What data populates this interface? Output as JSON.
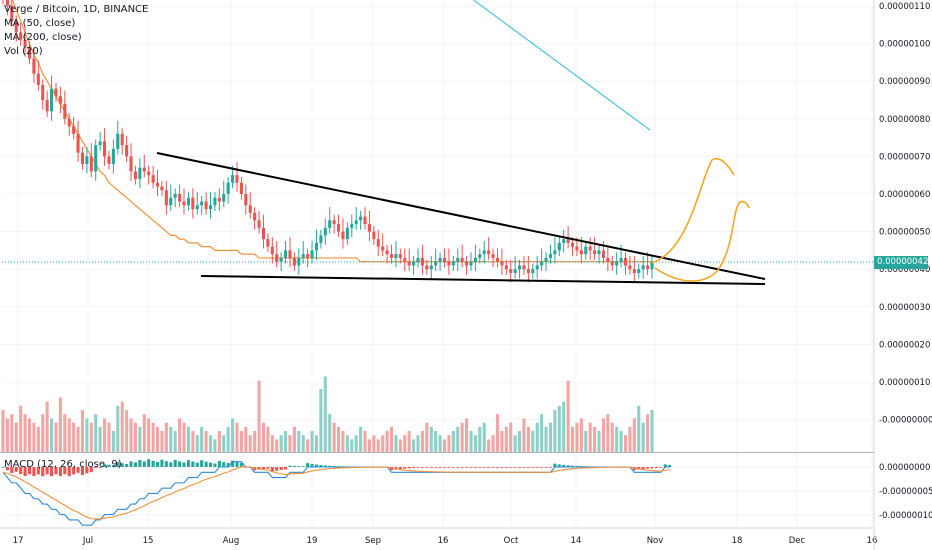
{
  "legend": {
    "symbol": "Verge / Bitcoin, 1D, BINANCE",
    "ma50": "MA (50, close)",
    "ma200": "MA (200, close)",
    "vol": "Vol (20)",
    "macd": "MACD (12, 26, close, 9)"
  },
  "colors": {
    "up": "#26a69a",
    "down": "#ef5350",
    "up_vol": "#8fcfc8",
    "down_vol": "#f3a5a4",
    "ma50": "#f0913c",
    "ma200": "#4dc3d6",
    "macd": "#2d8ad6",
    "signal": "#f0913c",
    "drawing": "#f5a623"
  },
  "last_price": "0.00000042",
  "chart_data": {
    "type": "candlestick",
    "title": "Verge / Bitcoin, 1D, BINANCE",
    "price_ticks": [
      "0.00000110",
      "0.00000100",
      "0.00000090",
      "0.00000080",
      "0.00000070",
      "0.00000060",
      "0.00000050",
      "0.00000040",
      "0.00000030",
      "0.00000020",
      "0.00000010",
      "-0.00000000"
    ],
    "macd_ticks": [
      "0.00000000",
      "-0.00000005",
      "-0.00000010"
    ],
    "x_ticks": [
      "17",
      "Jul",
      "15",
      "Aug",
      "19",
      "Sep",
      "16",
      "Oct",
      "14",
      "Nov",
      "18",
      "Dec",
      "16"
    ],
    "close": [
      112,
      110,
      106,
      103,
      101,
      99,
      96,
      92,
      89,
      85,
      82,
      88,
      86,
      84,
      80,
      78,
      76,
      71,
      68,
      70,
      66,
      73,
      74,
      70,
      68,
      72,
      76,
      73,
      70,
      66,
      64,
      67,
      66,
      65,
      63,
      62,
      61,
      57,
      59,
      60,
      58,
      57,
      59,
      56,
      57,
      58,
      56,
      57,
      59,
      58,
      60,
      63,
      65,
      63,
      60,
      57,
      55,
      53,
      51,
      48,
      46,
      44,
      42,
      43,
      45,
      43,
      41,
      43,
      44,
      43,
      45,
      47,
      49,
      51,
      53,
      52,
      50,
      48,
      51,
      52,
      53,
      54,
      52,
      50,
      48,
      46,
      45,
      44,
      43,
      44,
      43,
      42,
      41,
      42,
      43,
      41,
      40,
      41,
      42,
      43,
      42,
      41,
      42,
      43,
      42,
      41,
      42,
      43,
      44,
      45,
      44,
      43,
      42,
      41,
      40,
      39,
      40,
      41,
      40,
      39,
      40,
      41,
      42,
      43,
      44,
      45,
      47,
      48,
      47,
      46,
      45,
      44,
      46,
      45,
      44,
      45,
      43,
      42,
      41,
      42,
      43,
      41,
      40,
      39,
      40,
      41,
      40,
      42
    ],
    "volume": [
      10,
      8,
      9,
      7,
      11,
      9,
      8,
      7,
      6,
      9,
      12,
      8,
      7,
      13,
      9,
      8,
      7,
      6,
      10,
      8,
      7,
      9,
      6,
      8,
      7,
      5,
      11,
      12,
      10,
      8,
      7,
      6,
      9,
      8,
      7,
      6,
      5,
      7,
      6,
      5,
      8,
      7,
      6,
      5,
      4,
      6,
      5,
      4,
      3,
      5,
      4,
      6,
      8,
      7,
      5,
      6,
      4,
      5,
      17,
      7,
      6,
      4,
      3,
      4,
      5,
      4,
      6,
      5,
      4,
      3,
      5,
      4,
      15,
      18,
      9,
      7,
      6,
      5,
      4,
      3,
      4,
      6,
      5,
      3,
      4,
      3,
      4,
      5,
      6,
      4,
      3,
      4,
      5,
      3,
      4,
      5,
      7,
      6,
      5,
      4,
      3,
      4,
      5,
      6,
      7,
      8,
      5,
      4,
      6,
      7,
      3,
      4,
      9,
      5,
      6,
      7,
      4,
      5,
      8,
      6,
      5,
      7,
      9,
      6,
      7,
      10,
      11,
      12,
      17,
      6,
      7,
      8,
      5,
      7,
      6,
      5,
      8,
      9,
      7,
      6,
      5,
      4,
      6,
      8,
      11,
      7,
      9,
      10
    ],
    "ma50": [
      118,
      115,
      112,
      109,
      106,
      103,
      100,
      97,
      95,
      92,
      90,
      88,
      86,
      84,
      82,
      80,
      78,
      76,
      74,
      72,
      70,
      68,
      66,
      65,
      63,
      62,
      61,
      60,
      59,
      58,
      57,
      56,
      55,
      54,
      53,
      52,
      51,
      50,
      49,
      49,
      48,
      48,
      47,
      47,
      47,
      46,
      46,
      46,
      45,
      45,
      45,
      45,
      45,
      45,
      44,
      44,
      44,
      44,
      43,
      43,
      43,
      43,
      43,
      43,
      43,
      43,
      43,
      43,
      43,
      43,
      43,
      43,
      43,
      43,
      43,
      43,
      43,
      43,
      43,
      43,
      43,
      42,
      42,
      42,
      42,
      42,
      42,
      42,
      42,
      42,
      42,
      42,
      42,
      42,
      42,
      42,
      42,
      42,
      42,
      42,
      42,
      42,
      42,
      42,
      42,
      42,
      42,
      42,
      42,
      42,
      42,
      42,
      42,
      42,
      42,
      42,
      42,
      42,
      42,
      42,
      42,
      42,
      42,
      42,
      42,
      42,
      42,
      42,
      42,
      42,
      42,
      42,
      42,
      42,
      42,
      42,
      42,
      42,
      42,
      42,
      42,
      42,
      42,
      42,
      42,
      42,
      42,
      42
    ],
    "ma200_start": 119,
    "ma200_end": 77,
    "macd_line": [
      -1,
      -2,
      -3,
      -3,
      -4,
      -5,
      -5,
      -6,
      -6,
      -7,
      -7,
      -8,
      -8,
      -9,
      -9,
      -10,
      -10,
      -10,
      -11,
      -11,
      -11,
      -10,
      -10,
      -9,
      -9,
      -9,
      -8,
      -8,
      -8,
      -7,
      -7,
      -6,
      -6,
      -5,
      -5,
      -5,
      -4,
      -4,
      -4,
      -3,
      -3,
      -3,
      -2,
      -2,
      -2,
      -1,
      -1,
      -1,
      -1,
      0,
      0,
      0,
      1,
      1,
      1,
      0,
      0,
      -1,
      -1,
      -1,
      -1,
      -2,
      -2,
      -2,
      -2,
      -1,
      -1,
      -1,
      -1,
      0,
      0,
      0,
      0,
      0,
      0,
      0,
      0,
      0,
      0,
      0,
      0,
      0,
      0,
      0,
      0,
      0,
      0,
      0,
      -1,
      -1,
      -1,
      -1,
      -1,
      -1,
      -1,
      -1,
      -1,
      -1,
      -1,
      -1,
      -1,
      -1,
      -1,
      -1,
      -1,
      -1,
      -1,
      -1,
      -1,
      -1,
      -1,
      -1,
      -1,
      -1,
      -1,
      -1,
      -1,
      -1,
      -1,
      -1,
      -1,
      -1,
      -1,
      -1,
      -1,
      0,
      0,
      0,
      0,
      0,
      0,
      0,
      0,
      0,
      0,
      0,
      0,
      0,
      0,
      0,
      0,
      0,
      0,
      -1,
      -1,
      -1,
      -1,
      -1,
      -1,
      -1,
      0,
      0
    ]
  }
}
